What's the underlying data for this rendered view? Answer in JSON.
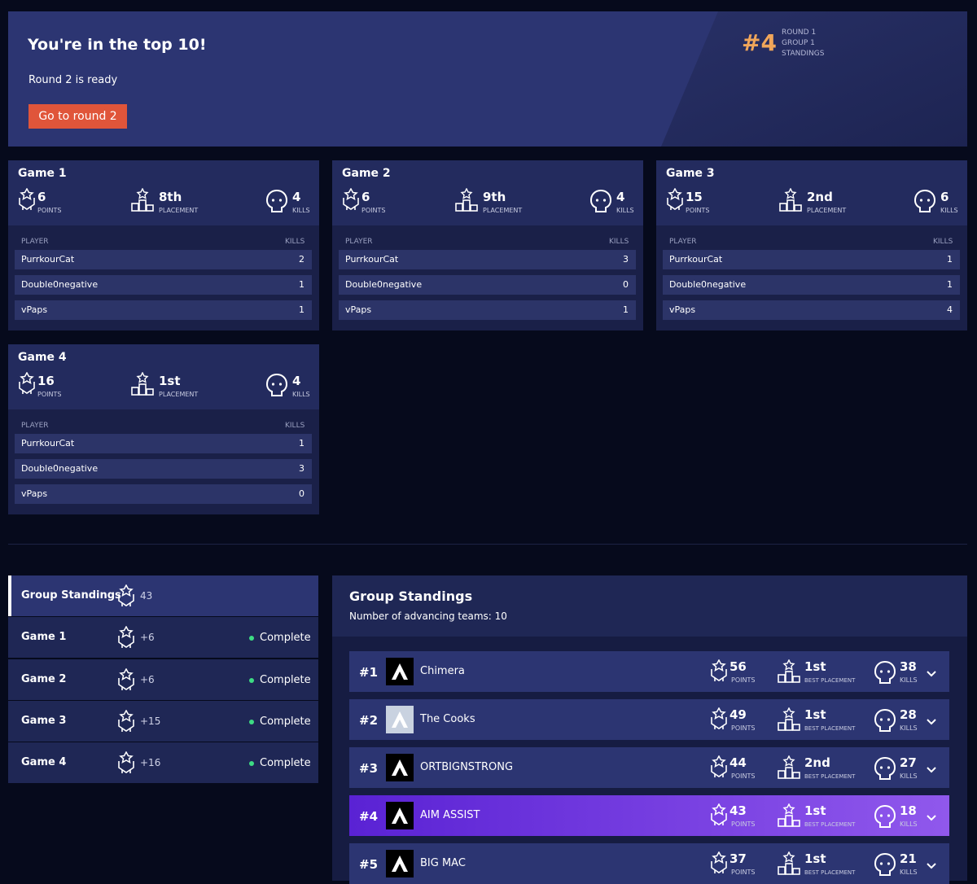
{
  "banner": {
    "title": "You're in the top 10!",
    "subtitle": "Round 2 is ready",
    "button": "Go to round 2",
    "rank": "#4",
    "meta": [
      "ROUND 1",
      "GROUP 1",
      "STANDINGS"
    ]
  },
  "labels": {
    "points": "POINTS",
    "placement": "PLACEMENT",
    "kills": "KILLS",
    "player": "PLAYER",
    "kills_col": "KILLS",
    "best_placement": "BEST PLACEMENT"
  },
  "games": [
    {
      "title": "Game 1",
      "points": 6,
      "placement": "8th",
      "kills": 4,
      "players": [
        [
          "PurrkourCat",
          2
        ],
        [
          "Double0negative",
          1
        ],
        [
          "vPaps",
          1
        ]
      ]
    },
    {
      "title": "Game 2",
      "points": 6,
      "placement": "9th",
      "kills": 4,
      "players": [
        [
          "PurrkourCat",
          3
        ],
        [
          "Double0negative",
          0
        ],
        [
          "vPaps",
          1
        ]
      ]
    },
    {
      "title": "Game 3",
      "points": 15,
      "placement": "2nd",
      "kills": 6,
      "players": [
        [
          "PurrkourCat",
          1
        ],
        [
          "Double0negative",
          1
        ],
        [
          "vPaps",
          4
        ]
      ]
    },
    {
      "title": "Game 4",
      "points": 16,
      "placement": "1st",
      "kills": 4,
      "players": [
        [
          "PurrkourCat",
          1
        ],
        [
          "Double0negative",
          3
        ],
        [
          "vPaps",
          0
        ]
      ]
    }
  ],
  "sidebar": [
    {
      "name": "Group Standings",
      "points": "43"
    },
    {
      "name": "Game 1",
      "points": "+6",
      "status": "Complete"
    },
    {
      "name": "Game 2",
      "points": "+6",
      "status": "Complete"
    },
    {
      "name": "Game 3",
      "points": "+15",
      "status": "Complete"
    },
    {
      "name": "Game 4",
      "points": "+16",
      "status": "Complete"
    }
  ],
  "standings": {
    "title": "Group Standings",
    "subtitle": "Number of advancing teams: 10",
    "teams": [
      {
        "rank": "#1",
        "name": "Chimera",
        "points": 56,
        "best": "1st",
        "kills": 38
      },
      {
        "rank": "#2",
        "name": "The Cooks",
        "points": 49,
        "best": "1st",
        "kills": 28
      },
      {
        "rank": "#3",
        "name": "ORTBIGNSTRONG",
        "points": 44,
        "best": "2nd",
        "kills": 27
      },
      {
        "rank": "#4",
        "name": "AIM ASSIST",
        "points": 43,
        "best": "1st",
        "kills": 18
      },
      {
        "rank": "#5",
        "name": "BIG MAC",
        "points": 37,
        "best": "1st",
        "kills": 21
      }
    ]
  }
}
